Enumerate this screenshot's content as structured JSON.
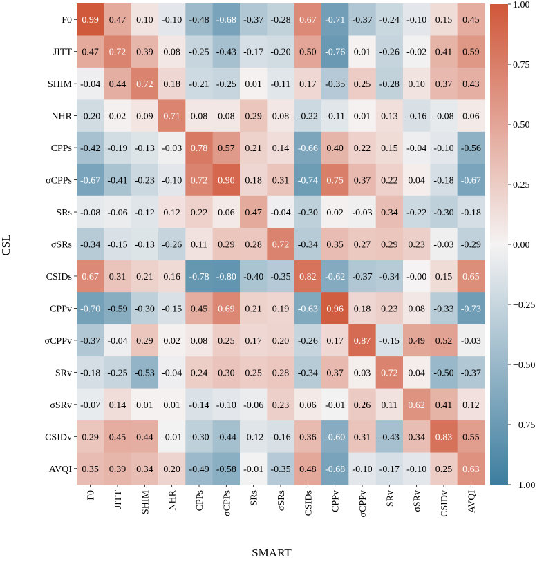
{
  "chart_data": {
    "type": "heatmap",
    "title": "",
    "xlabel": "SMART",
    "ylabel": "CSL",
    "x_categories": [
      "F0",
      "JITT",
      "SHIM",
      "NHR",
      "CPPs",
      "σCPPs",
      "SRs",
      "σSRs",
      "CSIDs",
      "CPPv",
      "σCPPv",
      "SRv",
      "σSRv",
      "CSIDv",
      "AVQI"
    ],
    "y_categories": [
      "F0",
      "JITT",
      "SHIM",
      "NHR",
      "CPPs",
      "σCPPs",
      "SRs",
      "σSRs",
      "CSIDs",
      "CPPv",
      "σCPPv",
      "SRv",
      "σSRv",
      "CSIDv",
      "AVQI"
    ],
    "cell_labels": [
      [
        "0.99",
        "0.47",
        "0.10",
        "-0.10",
        "-0.48",
        "-0.68",
        "-0.37",
        "-0.28",
        "0.67",
        "-0.71",
        "-0.37",
        "-0.24",
        "-0.10",
        "0.15",
        "0.45"
      ],
      [
        "0.47",
        "0.72",
        "0.39",
        "0.08",
        "-0.25",
        "-0.43",
        "-0.17",
        "-0.20",
        "0.50",
        "-0.76",
        "0.01",
        "-0.26",
        "-0.02",
        "0.41",
        "0.59"
      ],
      [
        "-0.04",
        "0.44",
        "0.72",
        "0.18",
        "-0.21",
        "-0.25",
        "0.01",
        "-0.11",
        "0.17",
        "-0.35",
        "0.25",
        "-0.28",
        "0.10",
        "0.37",
        "0.43"
      ],
      [
        "-0.20",
        "0.02",
        "0.09",
        "0.71",
        "0.08",
        "0.08",
        "0.29",
        "0.08",
        "-0.22",
        "-0.11",
        "0.01",
        "0.13",
        "-0.16",
        "-0.08",
        "0.06"
      ],
      [
        "-0.42",
        "-0.19",
        "-0.13",
        "-0.03",
        "0.78",
        "0.57",
        "0.21",
        "0.14",
        "-0.66",
        "0.40",
        "0.22",
        "0.15",
        "-0.04",
        "-0.10",
        "-0.56"
      ],
      [
        "-0.67",
        "-0.41",
        "-0.23",
        "-0.10",
        "0.72",
        "0.90",
        "0.18",
        "0.31",
        "-0.74",
        "0.75",
        "0.37",
        "0.22",
        "0.04",
        "-0.18",
        "-0.67"
      ],
      [
        "-0.08",
        "-0.06",
        "-0.12",
        "0.12",
        "0.22",
        "0.06",
        "0.47",
        "-0.04",
        "-0.30",
        "0.02",
        "-0.03",
        "0.34",
        "-0.22",
        "-0.30",
        "-0.18"
      ],
      [
        "-0.34",
        "-0.15",
        "-0.13",
        "-0.26",
        "0.11",
        "0.29",
        "0.28",
        "0.72",
        "-0.34",
        "0.35",
        "0.27",
        "0.29",
        "0.23",
        "-0.03",
        "-0.29"
      ],
      [
        "0.67",
        "0.31",
        "0.21",
        "0.16",
        "-0.78",
        "-0.80",
        "-0.40",
        "-0.35",
        "0.82",
        "-0.62",
        "-0.37",
        "-0.34",
        "-0.00",
        "0.15",
        "0.65"
      ],
      [
        "-0.70",
        "-0.59",
        "-0.30",
        "-0.15",
        "0.45",
        "0.69",
        "0.21",
        "0.19",
        "-0.63",
        "0.96",
        "0.18",
        "0.23",
        "0.08",
        "-0.33",
        "-0.73"
      ],
      [
        "-0.37",
        "-0.04",
        "0.29",
        "0.02",
        "0.08",
        "0.25",
        "0.17",
        "0.20",
        "-0.26",
        "0.17",
        "0.87",
        "-0.15",
        "0.49",
        "0.52",
        "-0.03"
      ],
      [
        "-0.18",
        "-0.25",
        "-0.53",
        "-0.04",
        "0.24",
        "0.30",
        "0.25",
        "0.28",
        "-0.34",
        "0.37",
        "0.03",
        "0.72",
        "0.04",
        "-0.50",
        "-0.37"
      ],
      [
        "-0.07",
        "0.14",
        "0.01",
        "0.01",
        "-0.14",
        "-0.10",
        "-0.06",
        "0.23",
        "0.06",
        "-0.01",
        "0.26",
        "0.11",
        "0.62",
        "0.41",
        "0.12"
      ],
      [
        "0.29",
        "0.45",
        "0.44",
        "-0.01",
        "-0.30",
        "-0.44",
        "-0.12",
        "-0.16",
        "0.36",
        "-0.60",
        "0.31",
        "-0.43",
        "0.34",
        "0.83",
        "0.55"
      ],
      [
        "0.35",
        "0.39",
        "0.34",
        "0.20",
        "-0.49",
        "-0.58",
        "-0.01",
        "-0.35",
        "0.48",
        "-0.68",
        "-0.10",
        "-0.17",
        "-0.10",
        "0.25",
        "0.63"
      ]
    ],
    "vmin": -1.0,
    "vmax": 1.0,
    "colorbar_ticks": [
      "1.00",
      "0.75",
      "0.50",
      "0.25",
      "0.00",
      "−0.25",
      "−0.50",
      "−0.75",
      "−1.00"
    ],
    "colors": {
      "negative": "#3d7d9f",
      "center": "#f5f3f3",
      "positive": "#d0573a",
      "text_light": "#ffffff",
      "text_dark": "#000000"
    }
  }
}
